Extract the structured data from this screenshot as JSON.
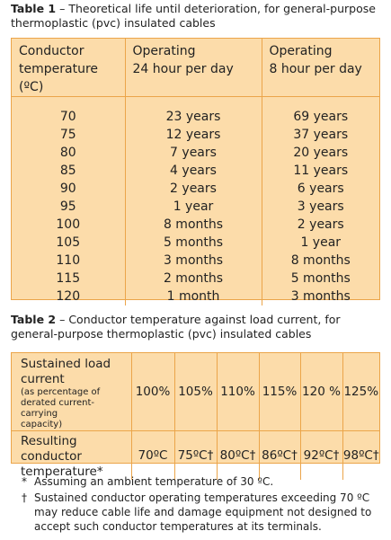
{
  "table1": {
    "caption_label": "Table 1",
    "caption": " – Theoretical life until deterioration, for general-purpose thermoplastic (pvc) insulated cables",
    "header": [
      "Conductor\ntemperature (ºC)",
      "Operating\n24 hour per day",
      "Operating\n8 hour per day"
    ],
    "rows": [
      [
        "70",
        "23 years",
        "69 years"
      ],
      [
        "75",
        "12 years",
        "37 years"
      ],
      [
        "80",
        "7 years",
        "20 years"
      ],
      [
        "85",
        "4 years",
        "11 years"
      ],
      [
        "90",
        "2 years",
        "6 years"
      ],
      [
        "95",
        "1 year",
        "3 years"
      ],
      [
        "100",
        "8 months",
        "2 years"
      ],
      [
        "105",
        "5 months",
        "1 year"
      ],
      [
        "110",
        "3 months",
        "8 months"
      ],
      [
        "115",
        "2 months",
        "5 months"
      ],
      [
        "120",
        "1 month",
        "3 months"
      ]
    ]
  },
  "table2": {
    "caption_label": "Table 2",
    "caption": " – Conductor temperature against load current, for general-purpose thermoplastic (pvc) insulated cables",
    "row1_header": "Sustained load\ncurrent",
    "row1_note": "(as percentage of\nderated current-carrying\ncapacity)",
    "row1": [
      "100%",
      "105%",
      "110%",
      "115%",
      "120 %",
      "125%"
    ],
    "row2_header": "Resulting conductor\ntemperature*",
    "row2": [
      "70ºC",
      "75ºC†",
      "80ºC†",
      "86ºC†",
      "92ºC†",
      "98ºC†"
    ]
  },
  "footnotes": [
    {
      "marker": "*",
      "text": "Assuming an ambient temperature of 30 ºC."
    },
    {
      "marker": "†",
      "text": "Sustained conductor operating temperatures exceeding 70 ºC may reduce cable life and damage equipment not designed to accept such conductor temperatures at its terminals."
    }
  ]
}
